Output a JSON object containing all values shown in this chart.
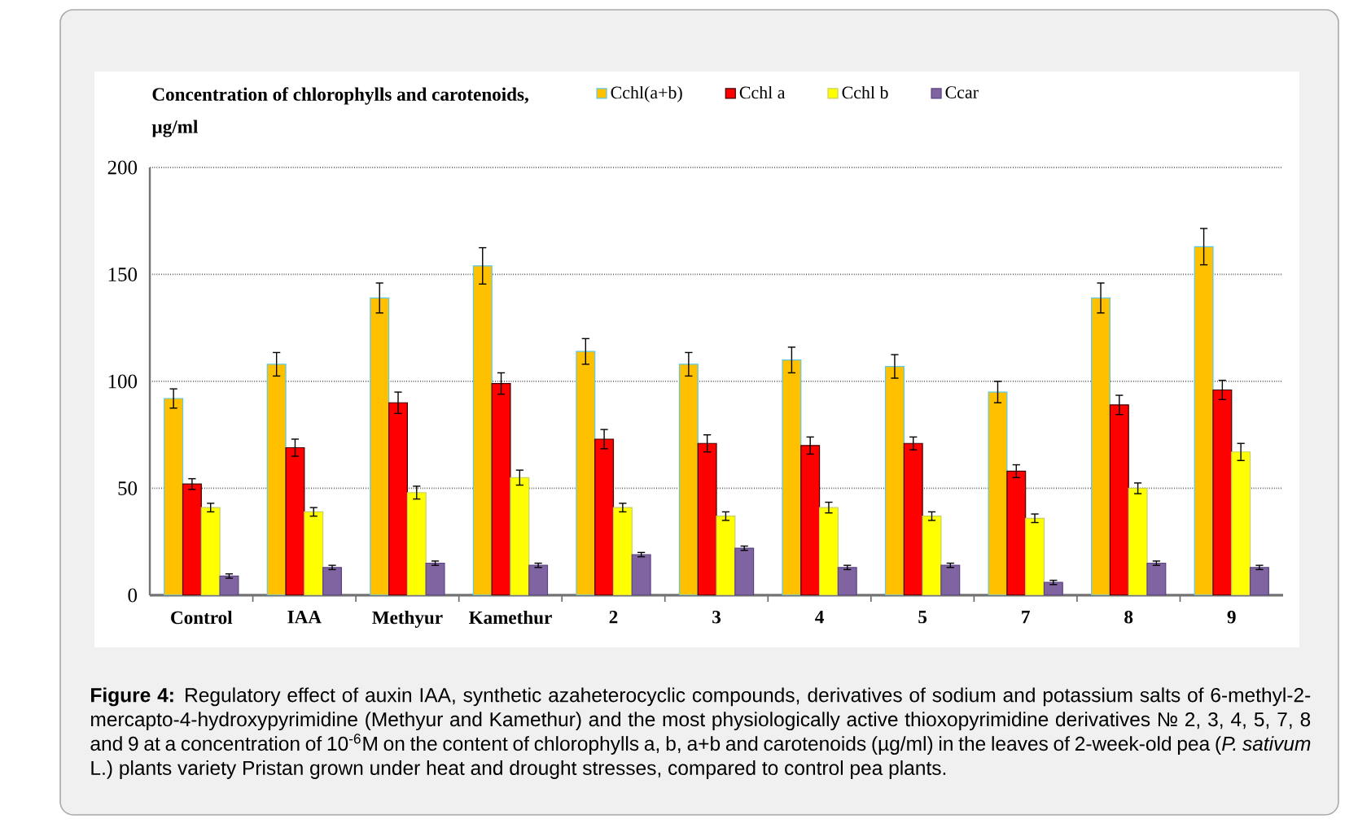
{
  "chart_data": {
    "type": "bar",
    "ylabel": "Concentration of chlorophylls and carotenoids, µg/ml",
    "categories": [
      "Control",
      "IAA",
      "Methyur",
      "Kamethur",
      "2",
      "3",
      "4",
      "5",
      "7",
      "8",
      "9"
    ],
    "series": [
      {
        "name": "Cchl(a+b)",
        "color": "#ffc000",
        "values": [
          92,
          108,
          139,
          154,
          114,
          108,
          110,
          107,
          95,
          139,
          163
        ],
        "errors": [
          4.5,
          5.5,
          7,
          8.5,
          6,
          5.5,
          6,
          5.5,
          5,
          7,
          8.5
        ]
      },
      {
        "name": "Cchl a",
        "color": "#ff0000",
        "values": [
          52,
          69,
          90,
          99,
          73,
          71,
          70,
          71,
          58,
          89,
          96
        ],
        "errors": [
          2.5,
          4,
          5,
          5,
          4.5,
          4,
          4,
          3,
          3,
          4.5,
          4.5
        ]
      },
      {
        "name": "Cchl b",
        "color": "#ffff00",
        "values": [
          41,
          39,
          48,
          55,
          41,
          37,
          41,
          37,
          36,
          50,
          67
        ],
        "errors": [
          2,
          2,
          3,
          3.5,
          2,
          2,
          2.5,
          2,
          2,
          2.5,
          4
        ]
      },
      {
        "name": "Ccar",
        "color": "#8064a2",
        "values": [
          9,
          13,
          15,
          14,
          19,
          22,
          13,
          14,
          6,
          15,
          13
        ],
        "errors": [
          1,
          1,
          1,
          1,
          1,
          1,
          1,
          1,
          1,
          1,
          1
        ]
      }
    ],
    "ylim": [
      0,
      200
    ],
    "yticks": [
      0,
      50,
      100,
      150,
      200
    ],
    "grid": "y",
    "legend": "top",
    "annotations": [
      "**Figure 4:**  Regulatory effect of auxin IAA, synthetic azaheterocyclic compounds, derivatives of sodium and potassium salts of 6-methyl-2-mercapto-4-hydroxypyrimidine (Methyur and Kamethur) and the most physiologically active thioxopyrimidine derivatives № 2, 3, 4, 5, 7, 8 and 9 at a concentration of 10$^{-6}$M on the content of chlorophylls a, b, a+b and carotenoids (µg/ml) in the leaves of 2-week-old pea (*P. sativum* L.) plants variety Pristan grown under heat and drought stresses, compared to control pea plants."
    ]
  }
}
